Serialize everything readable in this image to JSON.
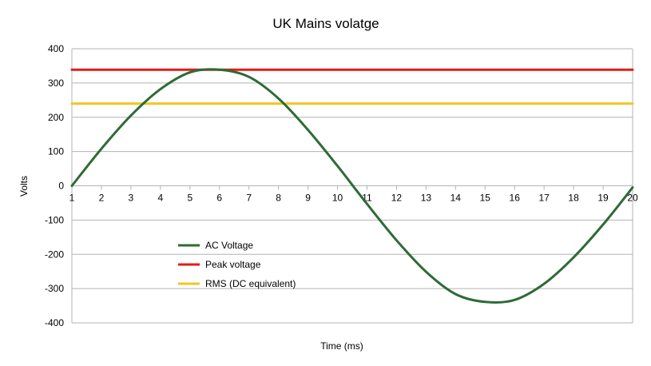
{
  "chart_data": {
    "type": "line",
    "title": "UK Mains volatge",
    "xlabel": "Time (ms)",
    "ylabel": "Volts",
    "x": [
      1,
      2,
      3,
      4,
      5,
      6,
      7,
      8,
      9,
      10,
      11,
      12,
      13,
      14,
      15,
      16,
      17,
      18,
      19,
      20
    ],
    "xlim": [
      1,
      20
    ],
    "ylim": [
      -400,
      400
    ],
    "y_ticks": [
      400,
      300,
      200,
      100,
      0,
      -100,
      -200,
      -300,
      -400
    ],
    "grid": true,
    "legend_position": "lower-left, inside plot",
    "series": [
      {
        "name": "AC Voltage",
        "color": "#2e6b35",
        "values": [
          0,
          108,
          205,
          282,
          331,
          339,
          318,
          255,
          163,
          58,
          -53,
          -159,
          -251,
          -316,
          -339,
          -333,
          -286,
          -209,
          -113,
          -5
        ]
      },
      {
        "name": "Peak voltage",
        "color": "#e01b1b",
        "values": [
          339,
          339,
          339,
          339,
          339,
          339,
          339,
          339,
          339,
          339,
          339,
          339,
          339,
          339,
          339,
          339,
          339,
          339,
          339,
          339
        ]
      },
      {
        "name": "RMS (DC equivalent)",
        "color": "#f3c623",
        "values": [
          240,
          240,
          240,
          240,
          240,
          240,
          240,
          240,
          240,
          240,
          240,
          240,
          240,
          240,
          240,
          240,
          240,
          240,
          240,
          240
        ]
      }
    ]
  }
}
